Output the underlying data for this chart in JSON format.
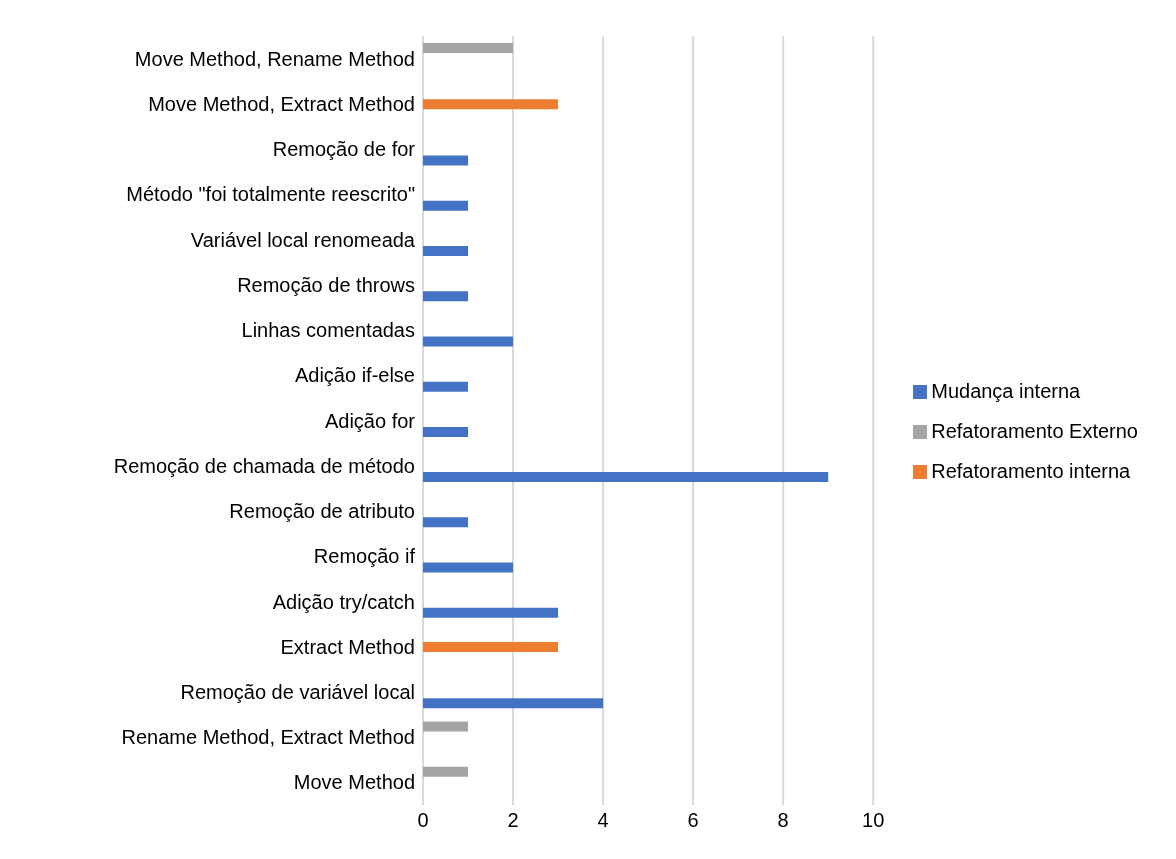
{
  "chart_data": {
    "type": "bar",
    "orientation": "horizontal",
    "categories": [
      "Move Method, Rename Method",
      "Move Method, Extract Method",
      "Remoção de for",
      "Método \"foi totalmente reescrito\"",
      "Variável local renomeada",
      "Remoção de throws",
      "Linhas comentadas",
      "Adição if-else",
      "Adição for",
      "Remoção de chamada de método",
      "Remoção de atributo",
      "Remoção if",
      "Adição try/catch",
      "Extract Method",
      "Remoção de variável local",
      "Rename Method, Extract Method",
      "Move Method"
    ],
    "series": [
      {
        "name": "Refatoramento Externo",
        "color": "#a5a5a5",
        "values": [
          2,
          null,
          null,
          null,
          null,
          null,
          null,
          null,
          null,
          null,
          null,
          null,
          null,
          null,
          null,
          1,
          1
        ]
      },
      {
        "name": "Refatoramento interna",
        "color": "#ed7d31",
        "values": [
          null,
          3,
          null,
          null,
          null,
          null,
          null,
          null,
          null,
          null,
          null,
          null,
          null,
          3,
          null,
          null,
          null
        ]
      },
      {
        "name": "Mudança interna",
        "color": "#4472c4",
        "values": [
          null,
          null,
          1,
          1,
          1,
          1,
          2,
          1,
          1,
          9,
          1,
          2,
          3,
          null,
          4,
          null,
          null
        ]
      }
    ],
    "xlim": [
      0,
      10
    ],
    "xticks": [
      0,
      2,
      4,
      6,
      8,
      10
    ],
    "grid": "x",
    "legend": "right"
  }
}
